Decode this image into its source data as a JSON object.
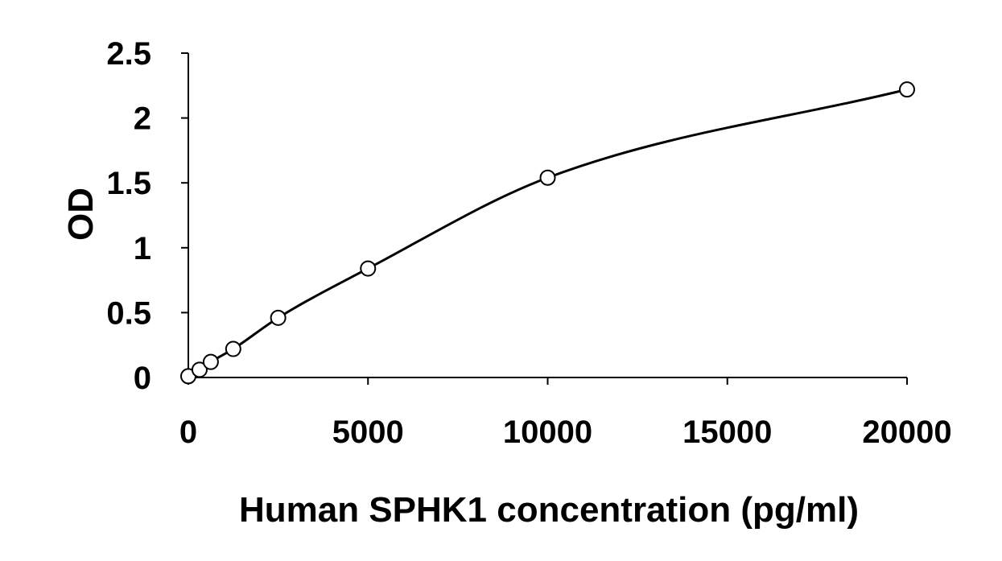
{
  "chart_data": {
    "type": "scatter",
    "title": "",
    "xlabel": "Human SPHK1 concentration (pg/ml)",
    "ylabel": "OD",
    "xlim": [
      0,
      20000
    ],
    "ylim": [
      0,
      2.5
    ],
    "x_ticks": [
      0,
      5000,
      10000,
      15000,
      20000
    ],
    "y_ticks": [
      0,
      0.5,
      1,
      1.5,
      2,
      2.5
    ],
    "x_tick_labels": [
      "0",
      "5000",
      "10000",
      "15000",
      "20000"
    ],
    "y_tick_labels": [
      "0",
      "0.5",
      "1",
      "1.5",
      "2",
      "2.5"
    ],
    "grid": false,
    "legend": "none",
    "series": [
      {
        "x": [
          0,
          312.5,
          625,
          1250,
          2500,
          5000,
          10000,
          20000
        ],
        "y": [
          0.01,
          0.06,
          0.12,
          0.22,
          0.46,
          0.84,
          1.54,
          2.22
        ],
        "marker": "open-circle",
        "fit_line": "smooth-curve"
      }
    ],
    "colors": {
      "marker_fill": "#ffffff",
      "marker_stroke": "#000000",
      "line": "#000000"
    }
  }
}
